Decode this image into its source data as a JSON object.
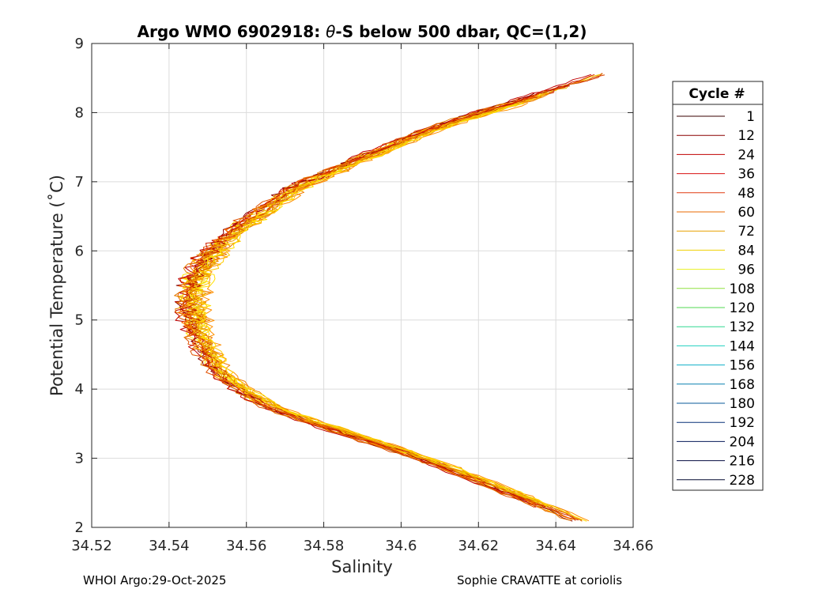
{
  "chart_data": {
    "type": "line",
    "title_prefix": "Argo WMO 6902918: ",
    "title_symbol": "θ",
    "title_suffix": "-S below 500 dbar,  QC=(1,2)",
    "xlabel": "Salinity",
    "ylabel": "Potential Temperature (˚C)",
    "xlim": [
      34.52,
      34.66
    ],
    "ylim": [
      2,
      9
    ],
    "xticks": [
      34.52,
      34.54,
      34.56,
      34.58,
      34.6,
      34.62,
      34.64,
      34.66
    ],
    "xtick_labels": [
      "34.52",
      "34.54",
      "34.56",
      "34.58",
      "34.6",
      "34.62",
      "34.64",
      "34.66"
    ],
    "yticks": [
      2,
      3,
      4,
      5,
      6,
      7,
      8,
      9
    ],
    "ytick_labels": [
      "2",
      "3",
      "4",
      "5",
      "6",
      "7",
      "8",
      "9"
    ],
    "grid": true,
    "legend": {
      "title": "Cycle #",
      "placement": "right",
      "entries": [
        {
          "label": "1",
          "color": "#3a0000"
        },
        {
          "label": "12",
          "color": "#8b0000"
        },
        {
          "label": "24",
          "color": "#c00000"
        },
        {
          "label": "36",
          "color": "#d81010"
        },
        {
          "label": "48",
          "color": "#e03a10"
        },
        {
          "label": "60",
          "color": "#e86a00"
        },
        {
          "label": "72",
          "color": "#e8a000"
        },
        {
          "label": "84",
          "color": "#f0d000"
        },
        {
          "label": "96",
          "color": "#e8f020"
        },
        {
          "label": "108",
          "color": "#90e040"
        },
        {
          "label": "120",
          "color": "#50d850"
        },
        {
          "label": "132",
          "color": "#30d890"
        },
        {
          "label": "144",
          "color": "#20d0c0"
        },
        {
          "label": "156",
          "color": "#10b0c8"
        },
        {
          "label": "168",
          "color": "#0880b0"
        },
        {
          "label": "180",
          "color": "#085898"
        },
        {
          "label": "192",
          "color": "#083078"
        },
        {
          "label": "204",
          "color": "#061a58"
        },
        {
          "label": "216",
          "color": "#040c40"
        },
        {
          "label": "228",
          "color": "#020830"
        }
      ]
    },
    "profile_shape": {
      "salinity": [
        34.645,
        34.637,
        34.628,
        34.619,
        34.61,
        34.6,
        34.589,
        34.578,
        34.568,
        34.561,
        34.556,
        34.552,
        34.55,
        34.548,
        34.5465,
        34.546,
        34.5455,
        34.546,
        34.5475,
        34.55,
        34.553,
        34.557,
        34.562,
        34.567,
        34.572,
        34.578,
        34.584,
        34.59,
        34.597,
        34.603,
        34.61,
        34.617,
        34.624,
        34.631,
        34.638,
        34.645,
        34.654
      ],
      "theta": [
        2.1,
        2.3,
        2.5,
        2.7,
        2.9,
        3.1,
        3.3,
        3.5,
        3.7,
        3.9,
        4.1,
        4.3,
        4.5,
        4.7,
        4.9,
        5.1,
        5.3,
        5.5,
        5.7,
        5.9,
        6.1,
        6.3,
        6.5,
        6.7,
        6.9,
        7.05,
        7.2,
        7.35,
        7.5,
        7.65,
        7.8,
        7.93,
        8.05,
        8.17,
        8.3,
        8.43,
        8.6
      ]
    },
    "series_colors": [
      "#e06a00",
      "#e87800",
      "#f0a000",
      "#f5c000",
      "#ffe800",
      "#ffff00",
      "#e05000",
      "#d03000",
      "#c00000",
      "#8b0000",
      "#ff9000",
      "#f08000",
      "#e8b000",
      "#ffd000",
      "#d84000",
      "#b00000",
      "#ff7000",
      "#f0d800",
      "#e06000",
      "#ffcc00",
      "#d02000",
      "#f0a800",
      "#e57a00",
      "#ffe000"
    ]
  },
  "footer": {
    "left": "WHOI Argo:29-Oct-2025",
    "right": "Sophie CRAVATTE at coriolis"
  }
}
